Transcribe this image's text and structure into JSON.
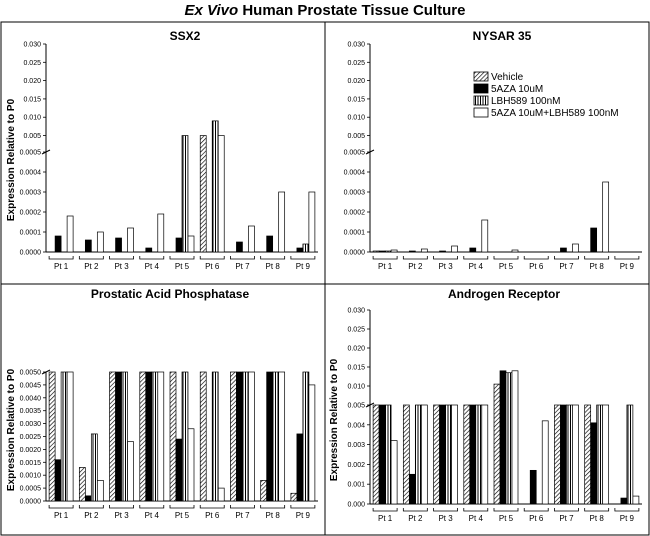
{
  "figure": {
    "title_italic": "Ex Vivo",
    "title_rest": " Human Prostate Tissue Culture"
  },
  "colors": {
    "vehicle": "hatch",
    "aza": "#000000",
    "lbh": "vertical-stripes",
    "combo": "#ffffff",
    "axis": "#000000"
  },
  "legend": {
    "entries": [
      "Vehicle",
      "5AZA 10uM",
      "LBH589 100nM",
      "5AZA 10uM+LBH589 100nM"
    ]
  },
  "chart_data": [
    {
      "type": "bar",
      "title": "SSX2",
      "ylabel": "Expression Relative to  P0",
      "categories": [
        "Pt 1",
        "Pt 2",
        "Pt 3",
        "Pt 4",
        "Pt 5",
        "Pt 6",
        "Pt 7",
        "Pt 8",
        "Pt 9"
      ],
      "axis_break": true,
      "ylim_lower": [
        0,
        0.0005
      ],
      "ylim_upper": [
        0.0005,
        0.03
      ],
      "yticks_lower": [
        "0.0000",
        "0.0001",
        "0.0002",
        "0.0003",
        "0.0004",
        "0.0005"
      ],
      "yticks_upper": [
        "0.005",
        "0.010",
        "0.015",
        "0.020",
        "0.025",
        "0.030"
      ],
      "series": [
        {
          "name": "Vehicle",
          "values": [
            0,
            0,
            0,
            0,
            0,
            0.005,
            0,
            0,
            0
          ]
        },
        {
          "name": "5AZA 10uM",
          "values": [
            8e-05,
            6e-05,
            7e-05,
            2e-05,
            7e-05,
            0,
            5e-05,
            8e-05,
            2e-05
          ]
        },
        {
          "name": "LBH589 100nM",
          "values": [
            0,
            0,
            0,
            0,
            0.005,
            0.009,
            0,
            0,
            4e-05
          ]
        },
        {
          "name": "5AZA 10uM+LBH589 100nM",
          "values": [
            0.00018,
            0.0001,
            0.00012,
            0.00019,
            8e-05,
            0.005,
            0.00013,
            0.0003,
            0.0003
          ]
        }
      ]
    },
    {
      "type": "bar",
      "title": "NYSAR 35",
      "ylabel": "",
      "categories": [
        "Pt 1",
        "Pt 2",
        "Pt 3",
        "Pt 4",
        "Pt 5",
        "Pt 6",
        "Pt 7",
        "Pt 8",
        "Pt 9"
      ],
      "axis_break": true,
      "ylim_lower": [
        0,
        0.0005
      ],
      "ylim_upper": [
        0.0005,
        0.03
      ],
      "yticks_lower": [
        "0.0000",
        "0.0001",
        "0.0002",
        "0.0003",
        "0.0004",
        "0.0005"
      ],
      "yticks_upper": [
        "0.005",
        "0.010",
        "0.015",
        "0.020",
        "0.025",
        "0.030"
      ],
      "series": [
        {
          "name": "Vehicle",
          "values": [
            5e-06,
            0,
            0,
            0,
            0,
            0,
            0,
            0,
            0
          ]
        },
        {
          "name": "5AZA 10uM",
          "values": [
            5e-06,
            5e-06,
            5e-06,
            2e-05,
            0,
            0,
            2e-05,
            0.00012,
            0
          ]
        },
        {
          "name": "LBH589 100nM",
          "values": [
            5e-06,
            0,
            0,
            0,
            0,
            0,
            0,
            0,
            0
          ]
        },
        {
          "name": "5AZA 10uM+LBH589 100nM",
          "values": [
            1e-05,
            1.5e-05,
            3e-05,
            0.00016,
            1e-05,
            0,
            4e-05,
            0.00035,
            0
          ]
        }
      ]
    },
    {
      "type": "bar",
      "title": "Prostatic Acid Phosphatase",
      "ylabel": "Expression Relative to  P0",
      "categories": [
        "Pt 1",
        "Pt 2",
        "Pt 3",
        "Pt 4",
        "Pt 5",
        "Pt 6",
        "Pt 7",
        "Pt 8",
        "Pt 9"
      ],
      "axis_break": true,
      "ylim_lower": [
        0,
        0.005
      ],
      "ylim_upper": [
        0.005,
        0.03
      ],
      "yticks_lower": [
        "0.0000",
        "0.0005",
        "0.0010",
        "0.0015",
        "0.0020",
        "0.0025",
        "0.0030",
        "0.0035",
        "0.0040",
        "0.0045",
        "0.0050"
      ],
      "yticks_upper": [],
      "series": [
        {
          "name": "Vehicle",
          "values": [
            0.005,
            0.0013,
            0.005,
            0.005,
            0.005,
            0.005,
            0.005,
            0.0008,
            0.0003
          ]
        },
        {
          "name": "5AZA 10uM",
          "values": [
            0.0016,
            0.0002,
            0.005,
            0.005,
            0.0024,
            0,
            0.005,
            0.005,
            0.0026
          ]
        },
        {
          "name": "LBH589 100nM",
          "values": [
            0.005,
            0.0026,
            0.005,
            0.005,
            0.005,
            0.005,
            0.005,
            0.005,
            0.005
          ]
        },
        {
          "name": "5AZA 10uM+LBH589 100nM",
          "values": [
            0.005,
            0.0008,
            0.0023,
            0.005,
            0.0028,
            0.0005,
            0.005,
            0.005,
            0.0045
          ]
        }
      ]
    },
    {
      "type": "bar",
      "title": "Androgen Receptor",
      "ylabel": "Expression Relative to  P0",
      "categories": [
        "Pt 1",
        "Pt 2",
        "Pt 3",
        "Pt 4",
        "Pt 5",
        "Pt 6",
        "Pt 7",
        "Pt 8",
        "Pt 9"
      ],
      "axis_break": true,
      "ylim_lower": [
        0,
        0.005
      ],
      "ylim_upper": [
        0.005,
        0.03
      ],
      "yticks_lower": [
        "0.000",
        "0.001",
        "0.002",
        "0.003",
        "0.004",
        "0.005"
      ],
      "yticks_upper": [
        "0.010",
        "0.015",
        "0.020",
        "0.025",
        "0.030"
      ],
      "series": [
        {
          "name": "Vehicle",
          "values": [
            0.005,
            0.005,
            0.005,
            0.005,
            0.0105,
            0,
            0.005,
            0.005,
            0
          ]
        },
        {
          "name": "5AZA 10uM",
          "values": [
            0.005,
            0.0015,
            0.005,
            0.005,
            0.014,
            0.0017,
            0.005,
            0.0041,
            0.0003
          ]
        },
        {
          "name": "LBH589 100nM",
          "values": [
            0.005,
            0.005,
            0.005,
            0.005,
            0.0135,
            0,
            0.005,
            0.005,
            0.005
          ]
        },
        {
          "name": "5AZA 10uM+LBH589 100nM",
          "values": [
            0.0032,
            0.005,
            0.005,
            0.005,
            0.014,
            0.0042,
            0.005,
            0.005,
            0.0004
          ]
        }
      ]
    }
  ]
}
